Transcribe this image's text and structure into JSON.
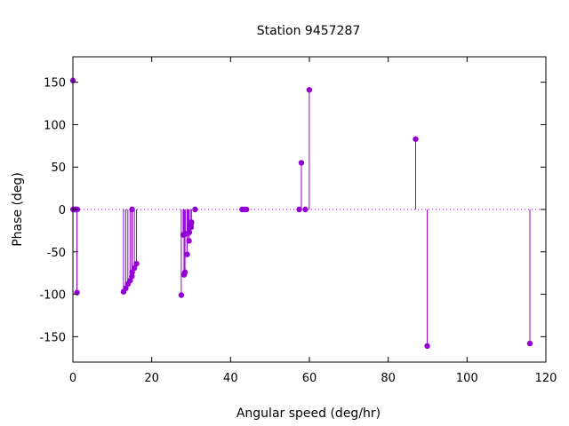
{
  "chart_data": {
    "type": "scatter",
    "style": "impulses-with-points",
    "title": "Station 9457287",
    "xlabel": "Angular speed (deg/hr)",
    "ylabel": "Phase (deg)",
    "xlim": [
      0,
      120
    ],
    "ylim": [
      -180,
      180
    ],
    "xticks": [
      0,
      20,
      40,
      60,
      80,
      100,
      120
    ],
    "yticks": [
      -150,
      -100,
      -50,
      0,
      50,
      100,
      150
    ],
    "zero_line": "dotted",
    "grid": false,
    "series_color": "#9400d3",
    "series": [
      {
        "points": [
          {
            "x": 0.0,
            "y": 152
          },
          {
            "x": 0.04,
            "y": 0
          },
          {
            "x": 0.08,
            "y": 0
          },
          {
            "x": 0.5,
            "y": 0
          },
          {
            "x": 0.55,
            "y": 0
          },
          {
            "x": 0.6,
            "y": 0
          },
          {
            "x": 1.0,
            "y": 0
          },
          {
            "x": 1.02,
            "y": -98
          },
          {
            "x": 1.1,
            "y": 0
          },
          {
            "x": 12.85,
            "y": -97
          },
          {
            "x": 13.4,
            "y": -93
          },
          {
            "x": 13.94,
            "y": -88
          },
          {
            "x": 14.5,
            "y": -84
          },
          {
            "x": 14.96,
            "y": -79
          },
          {
            "x": 15.0,
            "y": 0
          },
          {
            "x": 15.04,
            "y": -74
          },
          {
            "x": 15.6,
            "y": -69
          },
          {
            "x": 16.14,
            "y": -64
          },
          {
            "x": 27.5,
            "y": -101
          },
          {
            "x": 27.97,
            "y": -30
          },
          {
            "x": 28.2,
            "y": -77
          },
          {
            "x": 28.44,
            "y": -74
          },
          {
            "x": 28.51,
            "y": -29
          },
          {
            "x": 28.99,
            "y": -53
          },
          {
            "x": 29.2,
            "y": -28
          },
          {
            "x": 29.46,
            "y": -37
          },
          {
            "x": 29.53,
            "y": -27
          },
          {
            "x": 29.96,
            "y": -21
          },
          {
            "x": 30.0,
            "y": -17
          },
          {
            "x": 30.08,
            "y": -15
          },
          {
            "x": 31.0,
            "y": 0
          },
          {
            "x": 42.93,
            "y": 0
          },
          {
            "x": 43.48,
            "y": 0
          },
          {
            "x": 44.03,
            "y": 0
          },
          {
            "x": 57.42,
            "y": 0
          },
          {
            "x": 57.97,
            "y": 55
          },
          {
            "x": 58.98,
            "y": 0
          },
          {
            "x": 59.97,
            "y": 141
          },
          {
            "x": 86.95,
            "y": 83
          },
          {
            "x": 89.9,
            "y": -161
          },
          {
            "x": 115.94,
            "y": -158
          }
        ]
      }
    ]
  }
}
